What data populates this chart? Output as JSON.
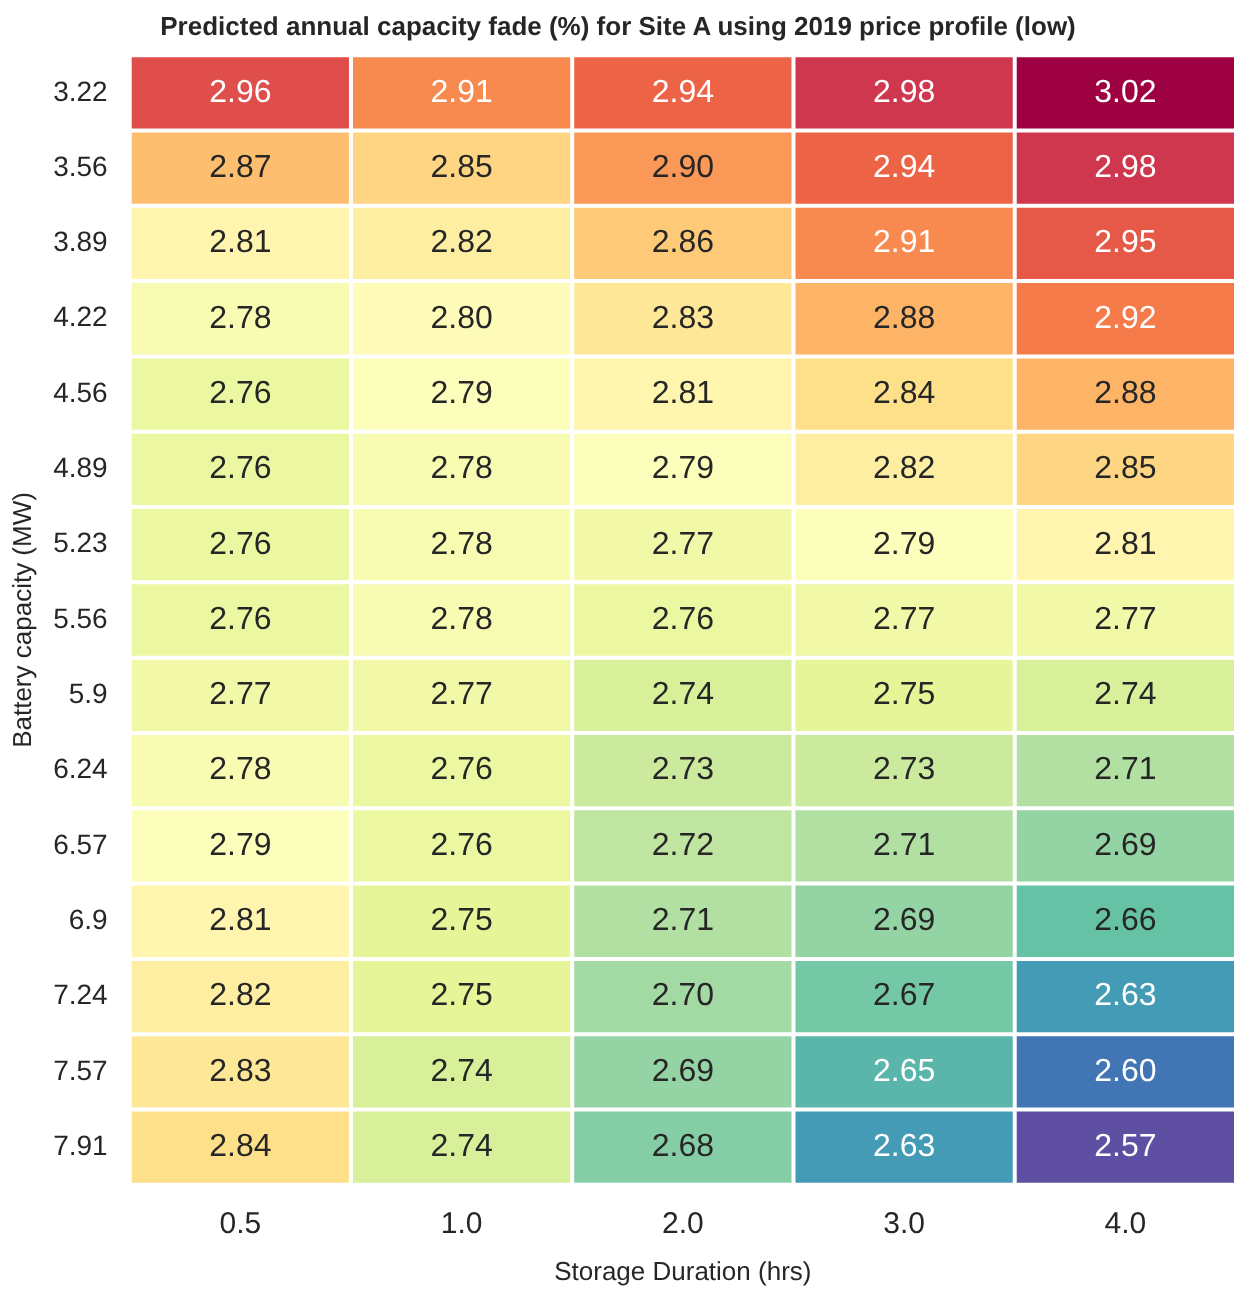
{
  "chart_data": {
    "type": "heatmap",
    "title": "Predicted annual capacity fade (%) for Site A using 2019 price profile (low)",
    "xlabel": "Storage Duration (hrs)",
    "ylabel": "Battery capacity (MW)",
    "categories": [
      "0.5",
      "1.0",
      "2.0",
      "3.0",
      "4.0"
    ],
    "y_categories": [
      "3.22",
      "3.56",
      "3.89",
      "4.22",
      "4.56",
      "4.89",
      "5.23",
      "5.56",
      "5.9",
      "6.24",
      "6.57",
      "6.9",
      "7.24",
      "7.57",
      "7.91"
    ],
    "cells": [
      [
        2.96,
        2.91,
        2.94,
        2.98,
        3.02
      ],
      [
        2.87,
        2.85,
        2.9,
        2.94,
        2.98
      ],
      [
        2.81,
        2.82,
        2.86,
        2.91,
        2.95
      ],
      [
        2.78,
        2.8,
        2.83,
        2.88,
        2.92
      ],
      [
        2.76,
        2.79,
        2.81,
        2.84,
        2.88
      ],
      [
        2.76,
        2.78,
        2.79,
        2.82,
        2.85
      ],
      [
        2.76,
        2.78,
        2.77,
        2.79,
        2.81
      ],
      [
        2.76,
        2.78,
        2.76,
        2.77,
        2.77
      ],
      [
        2.77,
        2.77,
        2.74,
        2.75,
        2.74
      ],
      [
        2.78,
        2.76,
        2.73,
        2.73,
        2.71
      ],
      [
        2.79,
        2.76,
        2.72,
        2.71,
        2.69
      ],
      [
        2.81,
        2.75,
        2.71,
        2.69,
        2.66
      ],
      [
        2.82,
        2.75,
        2.7,
        2.67,
        2.63
      ],
      [
        2.83,
        2.74,
        2.69,
        2.65,
        2.6
      ],
      [
        2.84,
        2.74,
        2.68,
        2.63,
        2.57
      ]
    ],
    "cell_labels": [
      [
        "2.96",
        "2.91",
        "2.94",
        "2.98",
        "3.02"
      ],
      [
        "2.87",
        "2.85",
        "2.90",
        "2.94",
        "2.98"
      ],
      [
        "2.81",
        "2.82",
        "2.86",
        "2.91",
        "2.95"
      ],
      [
        "2.78",
        "2.80",
        "2.83",
        "2.88",
        "2.92"
      ],
      [
        "2.76",
        "2.79",
        "2.81",
        "2.84",
        "2.88"
      ],
      [
        "2.76",
        "2.78",
        "2.79",
        "2.82",
        "2.85"
      ],
      [
        "2.76",
        "2.78",
        "2.77",
        "2.79",
        "2.81"
      ],
      [
        "2.76",
        "2.78",
        "2.76",
        "2.77",
        "2.77"
      ],
      [
        "2.77",
        "2.77",
        "2.74",
        "2.75",
        "2.74"
      ],
      [
        "2.78",
        "2.76",
        "2.73",
        "2.73",
        "2.71"
      ],
      [
        "2.79",
        "2.76",
        "2.72",
        "2.71",
        "2.69"
      ],
      [
        "2.81",
        "2.75",
        "2.71",
        "2.69",
        "2.66"
      ],
      [
        "2.82",
        "2.75",
        "2.70",
        "2.67",
        "2.63"
      ],
      [
        "2.83",
        "2.74",
        "2.69",
        "2.65",
        "2.60"
      ],
      [
        "2.84",
        "2.74",
        "2.68",
        "2.63",
        "2.57"
      ]
    ]
  }
}
